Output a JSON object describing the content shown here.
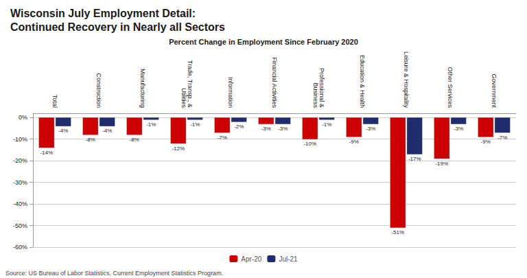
{
  "chart_data": {
    "type": "bar",
    "title": "Wisconsin July Employment Detail:\nContinued Recovery in Nearly all Sectors",
    "subtitle": "Percent Change in Employment Since February 2020",
    "annotations": [
      "Source: US Bureau of Labor Statistics, Current Employment Statistics Program."
    ],
    "categories": [
      "Total",
      "Construction",
      "Manufacturing",
      "Trade, Transp., &\nUtilities",
      "Information",
      "Financial Activities",
      "Professional &\nBusiness",
      "Education & Health",
      "Leisure & Hospitality",
      "Other Services",
      "Government"
    ],
    "series": [
      {
        "name": "Apr-20",
        "color": "#cc0000",
        "values": [
          -14,
          -8,
          -8,
          -12,
          -7,
          -3,
          -10,
          -9,
          -51,
          -19,
          -9
        ],
        "value_labels": [
          "-14%",
          "-8%",
          "-8%",
          "-12%",
          "-7%",
          "-3%",
          "-10%",
          "-9%",
          "-51%",
          "-19%",
          "-9%"
        ]
      },
      {
        "name": "Jul-21",
        "color": "#1f2d6e",
        "values": [
          -4,
          -4,
          -1,
          -1,
          -2,
          -3,
          -1,
          -3,
          -17,
          -3,
          -7
        ],
        "value_labels": [
          "-4%",
          "-4%",
          "-1%",
          "-1%",
          "-2%",
          "-3%",
          "-1%",
          "-3%",
          "-17%",
          "-3%",
          "-7%"
        ]
      }
    ],
    "ylim": [
      -60,
      2
    ],
    "yticks": [
      {
        "value": 0,
        "label": "0%"
      },
      {
        "value": -10,
        "label": "-10%"
      },
      {
        "value": -20,
        "label": "-20%"
      },
      {
        "value": -30,
        "label": "-30%"
      },
      {
        "value": -40,
        "label": "-40%"
      },
      {
        "value": -50,
        "label": "-50%"
      },
      {
        "value": -60,
        "label": "-60%"
      }
    ],
    "grid": true,
    "legend": "bottom",
    "data_labels": true
  }
}
